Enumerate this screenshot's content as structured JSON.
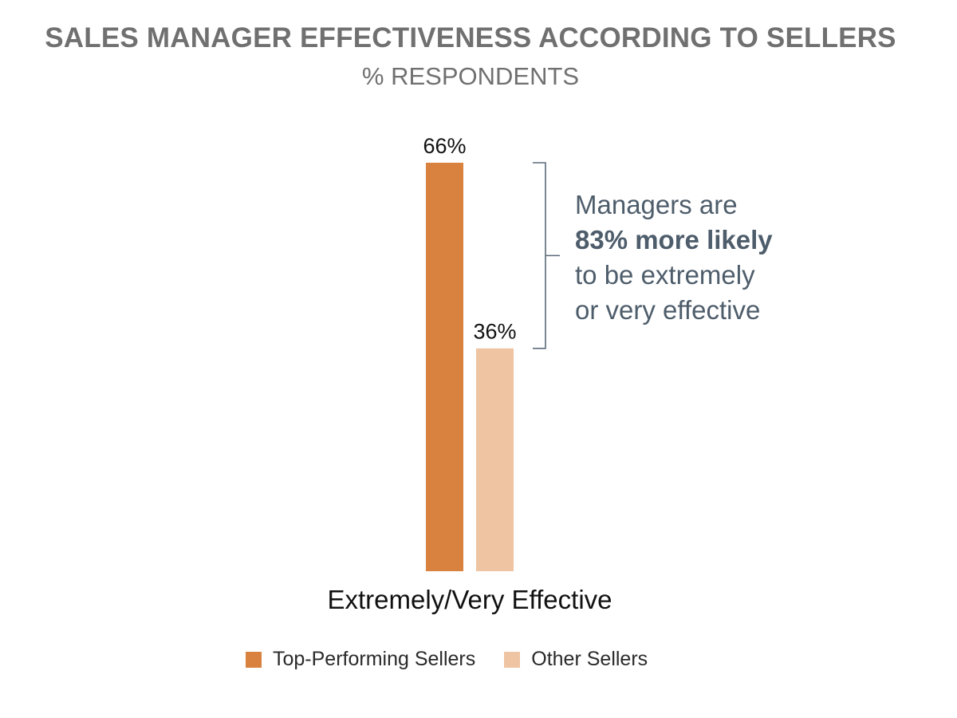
{
  "title": "SALES MANAGER EFFECTIVENESS ACCORDING TO SELLERS",
  "subtitle": "% RESPONDENTS",
  "callout": {
    "line1": "Managers are",
    "line2": "83% more likely",
    "line3": "to be extremely",
    "line4": "or very effective"
  },
  "colors": {
    "top_performing": "#d9813f",
    "other": "#efc4a2",
    "bracket": "#5a6a78",
    "text": "#111111"
  },
  "chart_data": {
    "type": "bar",
    "categories": [
      "Extremely/Very Effective"
    ],
    "series": [
      {
        "name": "Top-Performing Sellers",
        "values": [
          66
        ],
        "label": "66%"
      },
      {
        "name": "Other Sellers",
        "values": [
          36
        ],
        "label": "36%"
      }
    ],
    "ylim": [
      0,
      66
    ],
    "grid": false,
    "legend": "bottom"
  }
}
